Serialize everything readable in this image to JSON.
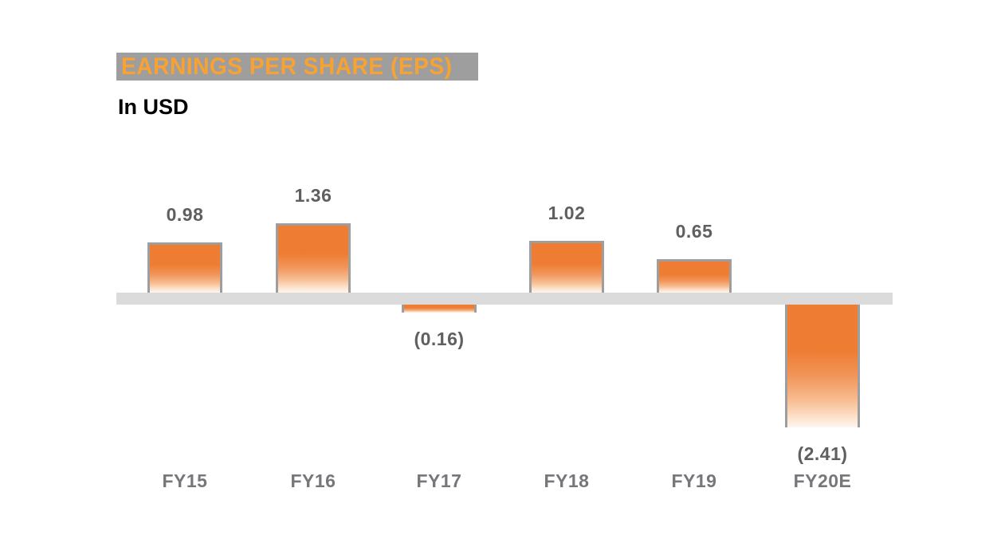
{
  "header": {
    "title": "EARNINGS PER SHARE (EPS)",
    "subtitle": "In USD"
  },
  "colors": {
    "title_text": "#F7A233",
    "title_highlight": "#9E9E9E",
    "bar_orange": "#EE7D33",
    "bar_fade_bottom": "#FEF6EF",
    "bar_border_gray": "#9E9E9E",
    "axis_band_gray": "#DBDBDB",
    "value_label_gray": "#5E5F61",
    "category_label_gray": "#76777A",
    "background": "#FFFFFF"
  },
  "chart_data": {
    "type": "bar",
    "title": "EARNINGS PER SHARE (EPS)",
    "subtitle_unit": "In USD",
    "xlabel": "",
    "ylabel": "",
    "ylim": [
      -2.6,
      1.6
    ],
    "grid": false,
    "legend": "none",
    "baseline": 0,
    "categories": [
      "FY15",
      "FY16",
      "FY17",
      "FY18",
      "FY19",
      "FY20E"
    ],
    "values": [
      0.98,
      1.36,
      -0.16,
      1.02,
      0.65,
      -2.41
    ],
    "value_labels": [
      "0.98",
      "1.36",
      "(0.16)",
      "1.02",
      "0.65",
      "(2.41)"
    ],
    "negative_format": "parentheses",
    "bar_style": "orange gradient fading to white at bottom, gray outline, thick light-gray zero axis band"
  }
}
